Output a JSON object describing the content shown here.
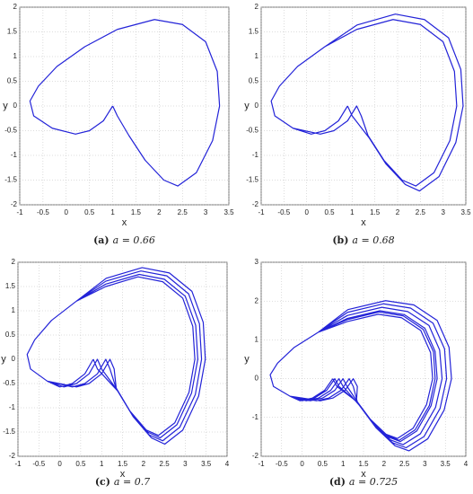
{
  "chart_data": [
    {
      "type": "line",
      "label": "(a)",
      "caption": "a = 0.66",
      "xlabel": "x",
      "ylabel": "y",
      "xlim": [
        -1,
        3.5
      ],
      "xticks": [
        -1,
        -0.5,
        0,
        0.5,
        1,
        1.5,
        2,
        2.5,
        3,
        3.5
      ],
      "ylim": [
        -2,
        2
      ],
      "yticks": [
        -2,
        -1.5,
        -1,
        -0.5,
        0,
        0.5,
        1,
        1.5,
        2
      ],
      "grid": true,
      "series": [
        {
          "color": "#2323d8",
          "x": [
            1,
            0.8,
            0.5,
            0.2,
            -0.3,
            -0.7,
            -0.78,
            -0.6,
            -0.2,
            0.4,
            1.1,
            1.9,
            2.5,
            3.0,
            3.25,
            3.3,
            3.15,
            2.8,
            2.4,
            2.1,
            1.7,
            1.35,
            1.1,
            1
          ],
          "values": [
            0,
            -0.3,
            -0.5,
            -0.57,
            -0.45,
            -0.2,
            0.1,
            0.4,
            0.8,
            1.2,
            1.55,
            1.75,
            1.65,
            1.3,
            0.7,
            0,
            -0.7,
            -1.35,
            -1.62,
            -1.5,
            -1.1,
            -0.6,
            -0.2,
            0
          ]
        }
      ]
    },
    {
      "type": "line",
      "label": "(b)",
      "caption": "a = 0.68",
      "xlabel": "x",
      "ylabel": "y",
      "xlim": [
        -1,
        3.5
      ],
      "xticks": [
        -1,
        -0.5,
        0,
        0.5,
        1,
        1.5,
        2,
        2.5,
        3,
        3.5
      ],
      "ylim": [
        -2,
        2
      ],
      "yticks": [
        -2,
        -1.5,
        -1,
        -0.5,
        0,
        0.5,
        1,
        1.5,
        2
      ],
      "grid": true,
      "series": [
        {
          "color": "#2323d8",
          "x": [
            0.9,
            0.7,
            0.4,
            0.1,
            -0.3,
            -0.7,
            -0.78,
            -0.6,
            -0.2,
            0.4,
            1.1,
            1.9,
            2.5,
            3.0,
            3.25,
            3.3,
            3.15,
            2.8,
            2.4,
            2.1,
            1.7,
            1.35,
            1.2,
            1.1,
            0.9,
            0.6,
            0.3,
            -0.3,
            -0.7,
            -0.78,
            -0.6,
            -0.2,
            0.4,
            1.11,
            1.95,
            2.59,
            3.12,
            3.39,
            3.44,
            3.28,
            2.91,
            2.48,
            2.17,
            1.74,
            1.37,
            1.0,
            0.9
          ],
          "values": [
            0,
            -0.3,
            -0.5,
            -0.57,
            -0.45,
            -0.2,
            0.1,
            0.4,
            0.8,
            1.2,
            1.55,
            1.75,
            1.65,
            1.3,
            0.7,
            0,
            -0.7,
            -1.35,
            -1.62,
            -1.5,
            -1.1,
            -0.6,
            -0.2,
            0,
            -0.3,
            -0.5,
            -0.57,
            -0.45,
            -0.2,
            0.1,
            0.4,
            0.8,
            1.2,
            1.64,
            1.86,
            1.75,
            1.38,
            0.74,
            0,
            -0.74,
            -1.43,
            -1.72,
            -1.59,
            -1.17,
            -0.64,
            -0.2,
            0
          ]
        }
      ]
    },
    {
      "type": "line",
      "label": "(c)",
      "caption": "a = 0.7",
      "xlabel": "x",
      "ylabel": "y",
      "xlim": [
        -1,
        4
      ],
      "xticks": [
        -1,
        -0.5,
        0,
        0.5,
        1,
        1.5,
        2,
        2.5,
        3,
        3.5,
        4
      ],
      "ylim": [
        -2,
        2
      ],
      "yticks": [
        -2,
        -1.5,
        -1,
        -0.5,
        0,
        0.5,
        1,
        1.5,
        2
      ],
      "grid": true,
      "series": [
        {
          "color": "#2323d8",
          "x": [
            0.8,
            0.6,
            0.3,
            0.0,
            -0.3,
            -0.7,
            -0.78,
            -0.6,
            -0.2,
            0.4,
            1.1,
            1.87,
            2.46,
            2.94,
            3.18,
            3.23,
            3.09,
            2.75,
            2.36,
            2.07,
            1.68,
            1.34,
            1.2,
            1.1,
            0.9,
            0.6,
            0.3,
            -0.3,
            -0.7,
            -0.78,
            -0.6,
            -0.2,
            0.4,
            1.1,
            1.94,
            2.56,
            3.08,
            3.34,
            3.39,
            3.24,
            2.87,
            2.46,
            2.14,
            1.73,
            1.36,
            1.0,
            0.9,
            0.7,
            0.4,
            0.1,
            -0.3,
            -0.7,
            -0.78,
            -0.6,
            -0.2,
            0.4,
            1.1,
            1.9,
            2.5,
            3.0,
            3.25,
            3.3,
            3.15,
            2.8,
            2.4,
            2.1,
            1.7,
            1.35,
            1.3,
            1.2,
            1.0,
            0.7,
            0.4,
            -0.3,
            -0.7,
            -0.78,
            -0.6,
            -0.2,
            0.4,
            1.11,
            1.97,
            2.62,
            3.16,
            3.43,
            3.48,
            3.32,
            2.94,
            2.51,
            2.19,
            1.76,
            1.38,
            0.9,
            0.8
          ],
          "values": [
            0,
            -0.3,
            -0.5,
            -0.57,
            -0.45,
            -0.2,
            0.1,
            0.4,
            0.8,
            1.2,
            1.5,
            1.7,
            1.6,
            1.26,
            0.68,
            0,
            -0.68,
            -1.31,
            -1.57,
            -1.46,
            -1.07,
            -0.58,
            -0.2,
            0,
            -0.3,
            -0.5,
            -0.57,
            -0.45,
            -0.2,
            0.1,
            0.4,
            0.8,
            1.2,
            1.61,
            1.82,
            1.72,
            1.35,
            0.73,
            0,
            -0.73,
            -1.4,
            -1.68,
            -1.56,
            -1.14,
            -0.62,
            -0.2,
            0,
            -0.3,
            -0.5,
            -0.57,
            -0.45,
            -0.2,
            0.1,
            0.4,
            0.8,
            1.2,
            1.55,
            1.75,
            1.65,
            1.3,
            0.7,
            0,
            -0.7,
            -1.35,
            -1.62,
            -1.5,
            -1.1,
            -0.6,
            -0.2,
            0,
            -0.3,
            -0.5,
            -0.57,
            -0.45,
            -0.2,
            0.1,
            0.4,
            0.8,
            1.2,
            1.67,
            1.89,
            1.78,
            1.4,
            0.76,
            0,
            -0.76,
            -1.46,
            -1.75,
            -1.62,
            -1.19,
            -0.65,
            -0.2,
            0
          ]
        }
      ]
    },
    {
      "type": "line",
      "label": "(d)",
      "caption": "a = 0.725",
      "xlabel": "x",
      "ylabel": "y",
      "xlim": [
        -1,
        4
      ],
      "xticks": [
        -1,
        -0.5,
        0,
        0.5,
        1,
        1.5,
        2,
        2.5,
        3,
        3.5,
        4
      ],
      "ylim": [
        -2,
        3
      ],
      "yticks": [
        -2,
        -1,
        0,
        1,
        2,
        3
      ],
      "grid": true,
      "series": [
        {
          "color": "#2323d8",
          "x": [
            0.75,
            0.55,
            0.25,
            -0.05,
            -0.3,
            -0.7,
            -0.78,
            -0.6,
            -0.2,
            0.4,
            1.1,
            1.86,
            2.43,
            2.9,
            3.14,
            3.19,
            3.04,
            2.71,
            2.33,
            2.05,
            1.67,
            1.33,
            1.35,
            1.25,
            1.05,
            0.75,
            0.45,
            -0.3,
            -0.7,
            -0.78,
            -0.6,
            -0.2,
            0.4,
            1.12,
            2.04,
            2.73,
            3.3,
            3.59,
            3.65,
            3.47,
            3.07,
            2.61,
            2.27,
            1.81,
            1.4,
            1.0,
            0.9,
            0.7,
            0.4,
            0.1,
            -0.3,
            -0.7,
            -0.78,
            -0.6,
            -0.2,
            0.4,
            1.1,
            1.9,
            2.5,
            3.0,
            3.25,
            3.3,
            3.15,
            2.8,
            2.4,
            2.1,
            1.7,
            1.35,
            1.25,
            1.15,
            0.95,
            0.65,
            0.35,
            -0.3,
            -0.7,
            -0.78,
            -0.6,
            -0.2,
            0.4,
            1.11,
            1.99,
            2.65,
            3.2,
            3.48,
            3.53,
            3.37,
            2.98,
            2.54,
            2.21,
            1.77,
            1.39,
            1.1,
            1.0,
            0.8,
            0.5,
            0.2,
            -0.3,
            -0.7,
            -0.78,
            -0.6,
            -0.2,
            0.4,
            1.11,
            1.95,
            2.58,
            3.1,
            3.36,
            3.42,
            3.26,
            2.89,
            2.47,
            2.16,
            1.74,
            1.37,
            0.9,
            0.8,
            0.6,
            0.3,
            0.0,
            -0.3,
            -0.7,
            -0.78,
            -0.6,
            -0.2,
            0.4,
            1.1,
            1.88,
            2.47,
            2.96,
            3.21,
            3.25,
            3.11,
            2.76,
            2.37,
            2.08,
            1.69,
            1.34,
            0.85,
            0.75
          ],
          "values": [
            0,
            -0.3,
            -0.5,
            -0.57,
            -0.45,
            -0.2,
            0.1,
            0.4,
            0.8,
            1.2,
            1.47,
            1.66,
            1.57,
            1.24,
            0.67,
            0,
            -0.67,
            -1.28,
            -1.54,
            -1.43,
            -1.05,
            -0.57,
            -0.2,
            0,
            -0.3,
            -0.5,
            -0.57,
            -0.45,
            -0.2,
            0.1,
            0.4,
            0.8,
            1.2,
            1.78,
            2.01,
            1.9,
            1.5,
            0.81,
            0,
            -0.81,
            -1.55,
            -1.86,
            -1.73,
            -1.27,
            -0.69,
            -0.2,
            0,
            -0.3,
            -0.5,
            -0.57,
            -0.45,
            -0.2,
            0.1,
            0.4,
            0.8,
            1.2,
            1.55,
            1.75,
            1.65,
            1.3,
            0.7,
            0,
            -0.7,
            -1.35,
            -1.62,
            -1.5,
            -1.1,
            -0.6,
            -0.2,
            0,
            -0.3,
            -0.5,
            -0.57,
            -0.45,
            -0.2,
            0.1,
            0.4,
            0.8,
            1.2,
            1.71,
            1.93,
            1.82,
            1.43,
            0.77,
            0,
            -0.77,
            -1.49,
            -1.78,
            -1.65,
            -1.21,
            -0.66,
            -0.2,
            0,
            -0.3,
            -0.5,
            -0.57,
            -0.45,
            -0.2,
            0.1,
            0.4,
            0.8,
            1.2,
            1.63,
            1.84,
            1.73,
            1.37,
            0.74,
            0,
            -0.74,
            -1.42,
            -1.7,
            -1.58,
            -1.16,
            -0.63,
            -0.2,
            0,
            -0.3,
            -0.5,
            -0.57,
            -0.45,
            -0.2,
            0.1,
            0.4,
            0.8,
            1.2,
            1.52,
            1.72,
            1.62,
            1.27,
            0.69,
            0,
            -0.69,
            -1.32,
            -1.59,
            -1.47,
            -1.08,
            -0.59,
            -0.2,
            0
          ]
        }
      ]
    }
  ]
}
